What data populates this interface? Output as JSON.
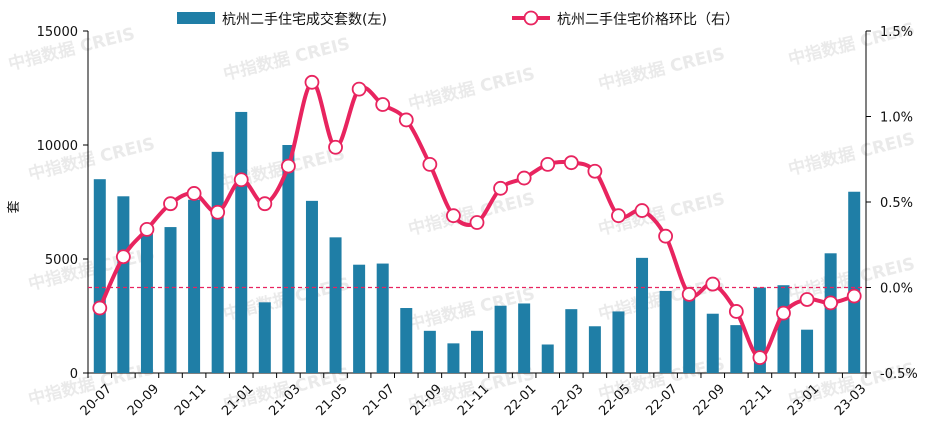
{
  "chart_data": {
    "type": "bar+line",
    "legend": {
      "bar_label": "杭州二手住宅成交套数(左)",
      "line_label": "杭州二手住宅价格环比（右）",
      "placement": "top"
    },
    "ylabel_left": "套",
    "left_axis": {
      "min": 0,
      "max": 15000,
      "ticks": [
        "0",
        "5000",
        "10000",
        "15000"
      ]
    },
    "right_axis": {
      "min": -0.5,
      "max": 1.5,
      "ticks": [
        "-0.5%",
        "0.0%",
        "0.5%",
        "1.0%",
        "1.5%"
      ]
    },
    "x_tick_labels": [
      "20-07",
      "20-09",
      "20-11",
      "21-01",
      "21-03",
      "21-05",
      "21-07",
      "21-09",
      "21-11",
      "22-01",
      "22-03",
      "22-05",
      "22-07",
      "22-09",
      "22-11",
      "23-01",
      "23-03"
    ],
    "categories": [
      "20-07",
      "20-08",
      "20-09",
      "20-10",
      "20-11",
      "20-12",
      "21-01",
      "21-02",
      "21-03",
      "21-04",
      "21-05",
      "21-06",
      "21-07",
      "21-08",
      "21-09",
      "21-10",
      "21-11",
      "21-12",
      "22-01",
      "22-02",
      "22-03",
      "22-04",
      "22-05",
      "22-06",
      "22-07",
      "22-08",
      "22-09",
      "22-10",
      "22-11",
      "22-12",
      "23-01",
      "23-02",
      "23-03"
    ],
    "series": [
      {
        "name": "杭州二手住宅成交套数(左)",
        "type": "bar",
        "axis": "left",
        "color": "#1f7ea6",
        "values": [
          8500,
          7750,
          6100,
          6400,
          7600,
          9700,
          11450,
          3100,
          10000,
          7550,
          5950,
          4750,
          4800,
          2850,
          1850,
          1300,
          1850,
          2950,
          3050,
          1250,
          2800,
          2050,
          2700,
          5050,
          3600,
          3450,
          2600,
          2100,
          3750,
          3850,
          1900,
          5250,
          7950
        ]
      },
      {
        "name": "杭州二手住宅价格环比（右）",
        "type": "line",
        "axis": "right",
        "color": "#e8245f",
        "values": [
          -0.12,
          0.18,
          0.34,
          0.49,
          0.55,
          0.44,
          0.63,
          0.49,
          0.71,
          1.2,
          0.82,
          1.16,
          1.07,
          0.98,
          0.72,
          0.42,
          0.38,
          0.58,
          0.64,
          0.72,
          0.73,
          0.68,
          0.42,
          0.45,
          0.3,
          -0.04,
          0.02,
          -0.14,
          -0.41,
          -0.15,
          -0.07,
          -0.09,
          -0.05
        ]
      }
    ],
    "reference_line": {
      "axis": "right",
      "value": 0,
      "color": "#e8245f",
      "style": "dashed"
    },
    "grid": false
  },
  "watermark": "中指数据 CREIS"
}
